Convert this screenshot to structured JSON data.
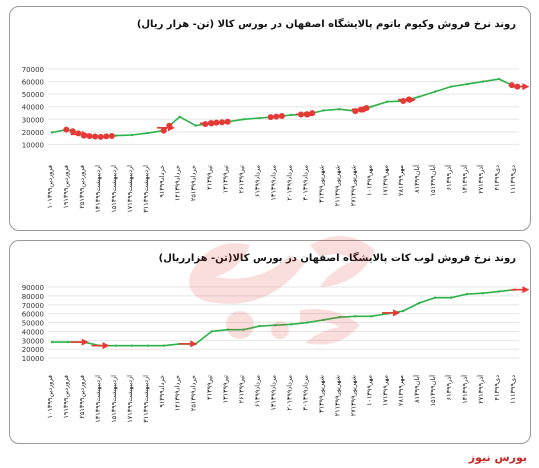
{
  "brand": {
    "name": "بورس نیوز",
    "color": "#c62828"
  },
  "colors": {
    "line": "#2db34a",
    "marker": "#e53935",
    "arrow": "#e53935",
    "grid": "#e6e6e6"
  },
  "chart_data": [
    {
      "type": "line",
      "title": "روند نرخ فروش وکیوم باتوم پالایشگاه اصفهان در بورس کالا (تن- هزار ریال)",
      "ylim": [
        0,
        70000
      ],
      "yticks": [
        "70000",
        "60000",
        "50000",
        "40000",
        "30000",
        "20000",
        "10000"
      ],
      "categories": [
        "۱۰فروردین۱۳۹۹",
        "۱۹فروردین۱۳۹۹",
        "۲۵فروردین۱۳۹۹",
        "۱۳اردیبهشت۱۳۹۹",
        "۱۵اردیبهشت۱۳۹۹",
        "۱۷اردیبهشت۱۳۹۹",
        "۳۱اردیبهشت۱۳۹۹",
        "۹خرداد۱۳۹۹",
        "۱۴خرداد۱۳۹۹",
        "۲۵خرداد۱۳۹۹",
        "۴تیر۱۳۹۹",
        "۱۳تیر۱۳۹۹",
        "۲۶تیر۱۳۹۹",
        "۶مرداد۱۳۹۹",
        "۱۳مرداد۱۳۹۹",
        "۲۰مرداد۱۳۹۹",
        "۳۰مرداد۱۳۹۹",
        "۳شهریور۱۳۹۹",
        "۲۱شهریور۱۳۹۹",
        "۲۷شهریور۱۳۹۹",
        "۱۰مهر۱۳۹۹",
        "۱۷مهر۱۳۹۹",
        "۲۸مهر۱۳۹۹",
        "۸آبان۱۳۹۹",
        "۱۵آبان۱۳۹۹",
        "۶آذر۱۳۹۹",
        "۱۳آذر۱۳۹۹",
        "۲۷آذر۱۳۹۹",
        "۴دی۱۳۹۹",
        "۱۱دی۱۳۹۹"
      ],
      "series": [
        {
          "values": [
            19500,
            22000,
            17000,
            16000,
            17000,
            17500,
            19000,
            21000,
            32000,
            25000,
            27000,
            28000,
            30000,
            31000,
            32000,
            33500,
            34000,
            37000,
            38000,
            36500,
            40000,
            44000,
            44500,
            48000,
            52000,
            56000,
            58000,
            60000,
            62000,
            56000
          ]
        }
      ],
      "markers": [
        {
          "from": 0.9,
          "to": 1.1
        },
        {
          "from": 1.3,
          "to": 4.0
        },
        {
          "from": 7.0,
          "to": 7.4
        },
        {
          "from": 9.6,
          "to": 11.3
        },
        {
          "from": 13.7,
          "to": 14.6
        },
        {
          "from": 15.6,
          "to": 16.4
        },
        {
          "from": 19.0,
          "to": 20.0
        },
        {
          "from": 22.0,
          "to": 22.4
        },
        {
          "from": 28.8,
          "to": 29.2
        }
      ],
      "arrows": [
        {
          "at": 1.8
        },
        {
          "at": 7.2
        },
        {
          "at": 9.9
        },
        {
          "at": 15.9
        },
        {
          "at": 19.4
        },
        {
          "at": 22.3
        },
        {
          "at": 29.4
        }
      ]
    },
    {
      "type": "line",
      "title": "روند نرخ فروش لوب کات پالایشگاه اصفهان در بورس کالا(تن- هزارریال)",
      "ylim": [
        0,
        90000
      ],
      "yticks": [
        "90000",
        "80000",
        "70000",
        "60000",
        "50000",
        "40000",
        "30000",
        "20000",
        "10000"
      ],
      "categories": [
        "۱۰فروردین۱۳۹۹",
        "۱۹فروردین۱۳۹۹",
        "۲۵فروردین۱۳۹۹",
        "۱۳اردیبهشت۱۳۹۹",
        "۱۵اردیبهشت۱۳۹۹",
        "۱۷اردیبهشت۱۳۹۹",
        "۳۱اردیبهشت۱۳۹۹",
        "۹خرداد۱۳۹۹",
        "۱۴خرداد۱۳۹۹",
        "۲۵خرداد۱۳۹۹",
        "۴تیر۱۳۹۹",
        "۱۳تیر۱۳۹۹",
        "۲۶تیر۱۳۹۹",
        "۶مرداد۱۳۹۹",
        "۱۳مرداد۱۳۹۹",
        "۲۰مرداد۱۳۹۹",
        "۳۰مرداد۱۳۹۹",
        "۳شهریور۱۳۹۹",
        "۲۱شهریور۱۳۹۹",
        "۲۷شهریور۱۳۹۹",
        "۱۰مهر۱۳۹۹",
        "۱۷مهر۱۳۹۹",
        "۲۸مهر۱۳۹۹",
        "۸آبان۱۳۹۹",
        "۱۵آبان۱۳۹۹",
        "۶آذر۱۳۹۹",
        "۱۳آذر۱۳۹۹",
        "۲۷آذر۱۳۹۹",
        "۴دی۱۳۹۹",
        "۱۱دی۱۳۹۹"
      ],
      "series": [
        {
          "values": [
            28000,
            28000,
            28000,
            24000,
            24000,
            24000,
            24000,
            24000,
            26000,
            26000,
            40000,
            42000,
            42000,
            46000,
            47000,
            48000,
            50000,
            53000,
            56000,
            57000,
            57000,
            60000,
            63000,
            72000,
            78000,
            78000,
            82000,
            83000,
            85000,
            87000
          ]
        }
      ],
      "markers": [],
      "arrows": [
        {
          "at": 1.8
        },
        {
          "at": 3.1
        },
        {
          "at": 8.6
        },
        {
          "at": 21.3
        },
        {
          "at": 29.4
        }
      ]
    }
  ]
}
